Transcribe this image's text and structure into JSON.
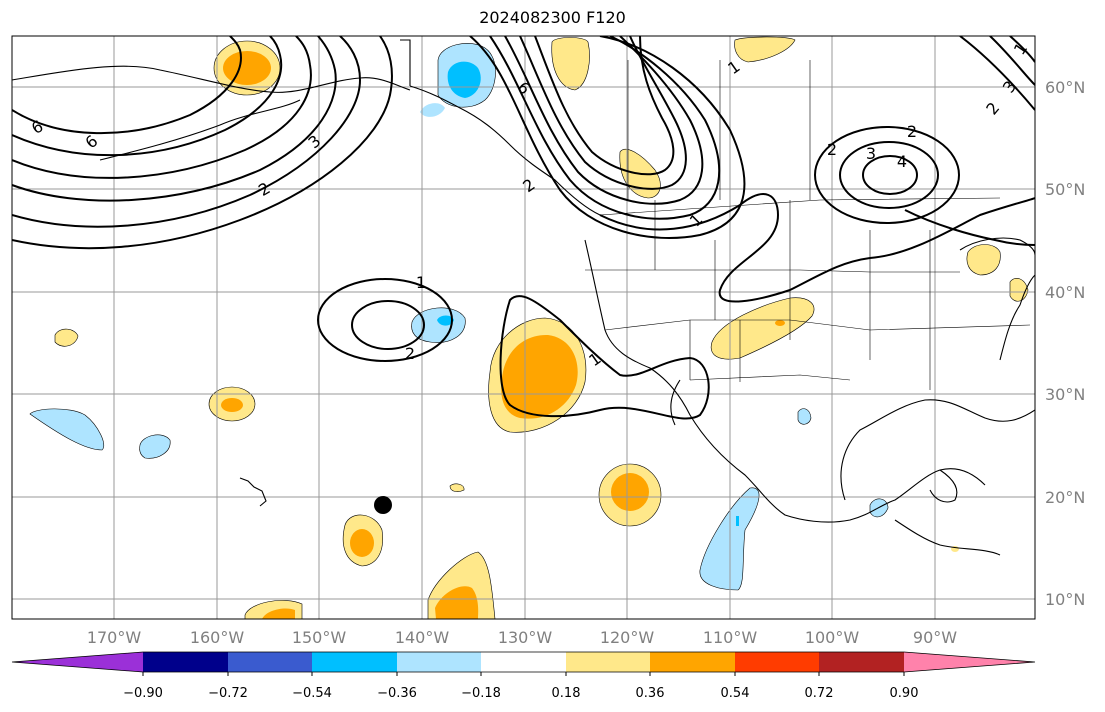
{
  "title": "2024082300 F120",
  "map": {
    "lon_labels": [
      "170°W",
      "160°W",
      "150°W",
      "140°W",
      "130°W",
      "120°W",
      "110°W",
      "100°W",
      "90°W"
    ],
    "lat_labels": [
      "60°N",
      "50°N",
      "40°N",
      "30°N",
      "20°N",
      "10°N"
    ],
    "contour_labels": [
      "6",
      "3",
      "2",
      "6",
      "6",
      "1",
      "2",
      "3",
      "4",
      "2",
      "1",
      "2",
      "3",
      "2",
      "1",
      "1",
      "2",
      "1"
    ]
  },
  "colorbar": {
    "colors": [
      "#9b30d8",
      "#00008b",
      "#3a5bcf",
      "#00bfff",
      "#aee4ff",
      "#ffffff",
      "#ffe88a",
      "#ffa500",
      "#ff3c00",
      "#b22222",
      "#ff82ab"
    ],
    "tick_labels": [
      "−0.90",
      "−0.72",
      "−0.54",
      "−0.36",
      "−0.18",
      "0.18",
      "0.36",
      "0.54",
      "0.72",
      "0.90"
    ]
  },
  "colors": {
    "grid": "#999999",
    "contour": "#000000",
    "axis_label": "#808080"
  }
}
